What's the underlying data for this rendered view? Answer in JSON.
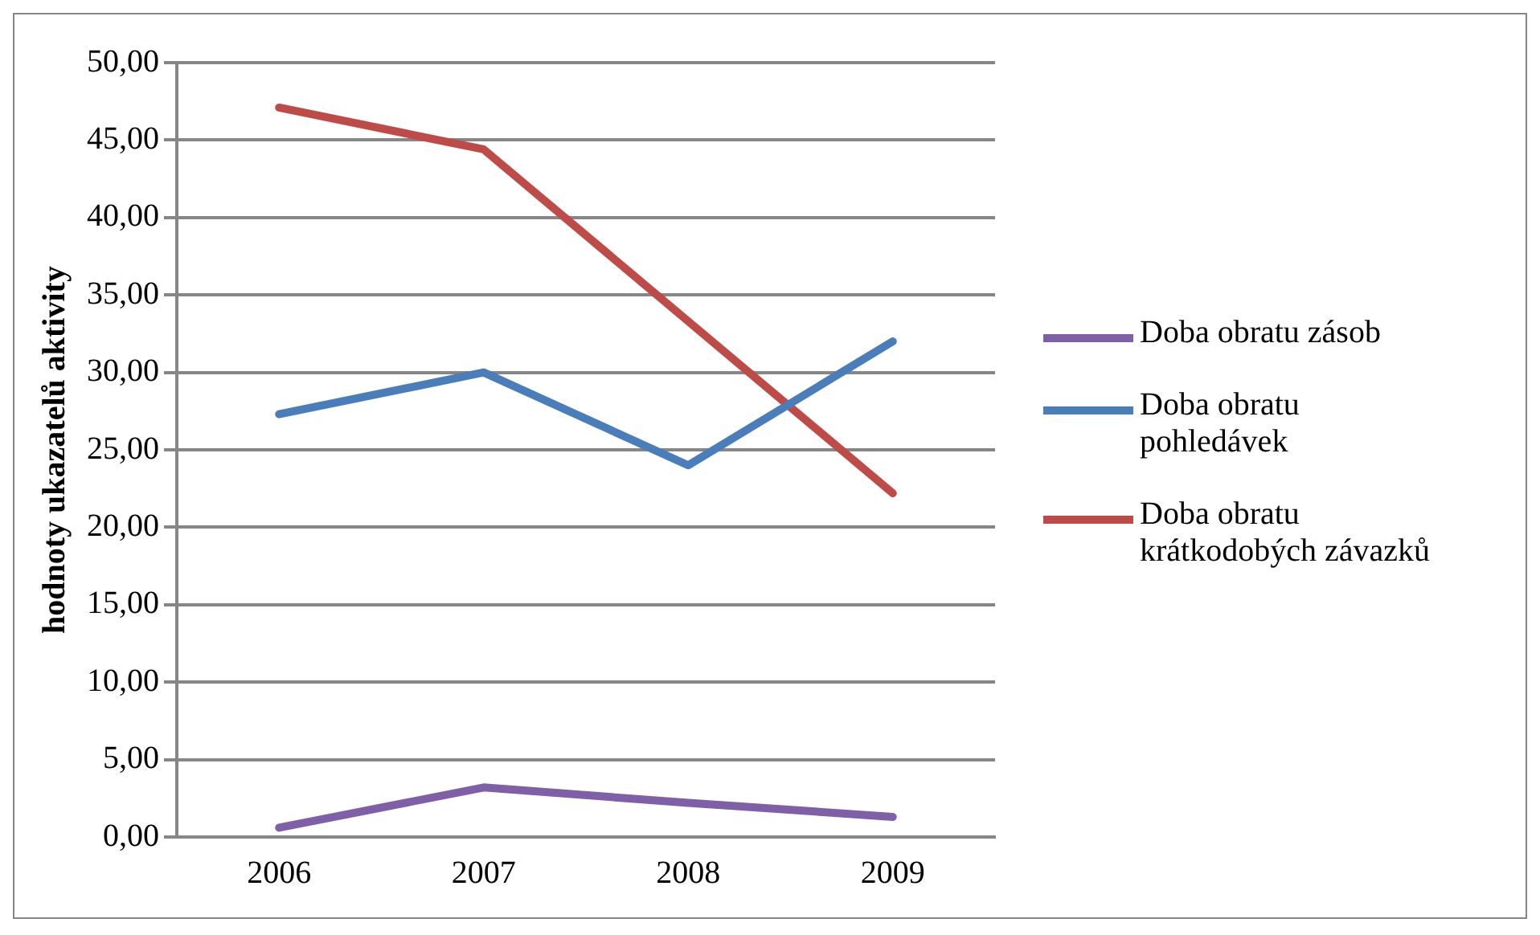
{
  "chart_data": {
    "type": "line",
    "ylabel": "hodnoty ukazatelů aktivity",
    "categories": [
      "2006",
      "2007",
      "2008",
      "2009"
    ],
    "series": [
      {
        "name": "Doba obratu zásob",
        "color": "#7f5fa8",
        "values": [
          0.6,
          3.2,
          2.2,
          1.3
        ]
      },
      {
        "name": "Doba obratu pohledávek",
        "color": "#4a7ebb",
        "values": [
          27.3,
          30.0,
          24.0,
          32.0
        ]
      },
      {
        "name": "Doba obratu krátkodobých závazků",
        "color": "#be4b48",
        "values": [
          47.1,
          44.4,
          33.3,
          22.2
        ]
      }
    ],
    "ylim": [
      0,
      50
    ],
    "yticks": [
      {
        "value": 0,
        "label": "0,00"
      },
      {
        "value": 5,
        "label": "5,00"
      },
      {
        "value": 10,
        "label": "10,00"
      },
      {
        "value": 15,
        "label": "15,00"
      },
      {
        "value": 20,
        "label": "20,00"
      },
      {
        "value": 25,
        "label": "25,00"
      },
      {
        "value": 30,
        "label": "30,00"
      },
      {
        "value": 35,
        "label": "35,00"
      },
      {
        "value": 40,
        "label": "40,00"
      },
      {
        "value": 45,
        "label": "45,00"
      },
      {
        "value": 50,
        "label": "50,00"
      }
    ],
    "grid": "y",
    "legend": "right",
    "marker": "none",
    "line_style": "solid"
  }
}
